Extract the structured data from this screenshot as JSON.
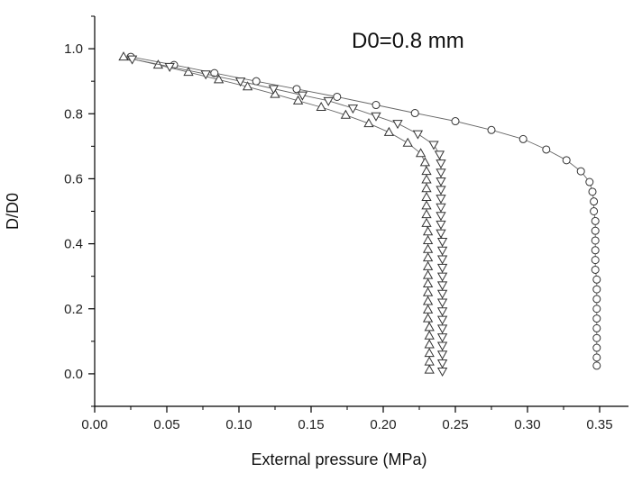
{
  "chart_data": {
    "type": "scatter",
    "title": "",
    "xlabel": "External pressure (MPa)",
    "ylabel": "D/D0",
    "annotation": "D0=0.8 mm",
    "xlim": [
      0.0,
      0.37
    ],
    "ylim": [
      -0.1,
      1.1
    ],
    "x_ticks": [
      "0.00",
      "0.05",
      "0.10",
      "0.15",
      "0.20",
      "0.25",
      "0.30",
      "0.35"
    ],
    "y_ticks": [
      "0.0",
      "0.2",
      "0.4",
      "0.6",
      "0.8",
      "1.0"
    ],
    "grid": false,
    "legend": "none",
    "series": [
      {
        "marker": "circle",
        "points": [
          [
            0.025,
            0.975
          ],
          [
            0.055,
            0.95
          ],
          [
            0.083,
            0.925
          ],
          [
            0.112,
            0.9
          ],
          [
            0.14,
            0.876
          ],
          [
            0.168,
            0.852
          ],
          [
            0.195,
            0.827
          ],
          [
            0.222,
            0.802
          ],
          [
            0.25,
            0.777
          ],
          [
            0.275,
            0.75
          ],
          [
            0.297,
            0.722
          ],
          [
            0.313,
            0.69
          ],
          [
            0.327,
            0.657
          ],
          [
            0.337,
            0.623
          ],
          [
            0.343,
            0.59
          ],
          [
            0.345,
            0.56
          ],
          [
            0.346,
            0.53
          ],
          [
            0.346,
            0.5
          ],
          [
            0.347,
            0.47
          ],
          [
            0.347,
            0.44
          ],
          [
            0.347,
            0.41
          ],
          [
            0.347,
            0.38
          ],
          [
            0.347,
            0.35
          ],
          [
            0.347,
            0.32
          ],
          [
            0.348,
            0.29
          ],
          [
            0.348,
            0.26
          ],
          [
            0.348,
            0.23
          ],
          [
            0.348,
            0.2
          ],
          [
            0.348,
            0.17
          ],
          [
            0.348,
            0.14
          ],
          [
            0.348,
            0.11
          ],
          [
            0.348,
            0.08
          ],
          [
            0.348,
            0.05
          ],
          [
            0.348,
            0.025
          ]
        ]
      },
      {
        "marker": "triangle-up",
        "points": [
          [
            0.02,
            0.975
          ],
          [
            0.044,
            0.95
          ],
          [
            0.065,
            0.928
          ],
          [
            0.086,
            0.905
          ],
          [
            0.106,
            0.883
          ],
          [
            0.125,
            0.86
          ],
          [
            0.141,
            0.84
          ],
          [
            0.157,
            0.82
          ],
          [
            0.174,
            0.796
          ],
          [
            0.19,
            0.77
          ],
          [
            0.204,
            0.743
          ],
          [
            0.217,
            0.71
          ],
          [
            0.226,
            0.678
          ],
          [
            0.229,
            0.65
          ],
          [
            0.23,
            0.623
          ],
          [
            0.23,
            0.597
          ],
          [
            0.23,
            0.57
          ],
          [
            0.23,
            0.543
          ],
          [
            0.23,
            0.517
          ],
          [
            0.23,
            0.49
          ],
          [
            0.23,
            0.463
          ],
          [
            0.231,
            0.437
          ],
          [
            0.231,
            0.41
          ],
          [
            0.231,
            0.383
          ],
          [
            0.231,
            0.357
          ],
          [
            0.231,
            0.33
          ],
          [
            0.231,
            0.303
          ],
          [
            0.231,
            0.277
          ],
          [
            0.231,
            0.25
          ],
          [
            0.231,
            0.223
          ],
          [
            0.231,
            0.197
          ],
          [
            0.231,
            0.17
          ],
          [
            0.232,
            0.143
          ],
          [
            0.232,
            0.117
          ],
          [
            0.232,
            0.09
          ],
          [
            0.232,
            0.063
          ],
          [
            0.232,
            0.037
          ],
          [
            0.232,
            0.012
          ]
        ]
      },
      {
        "marker": "triangle-down",
        "points": [
          [
            0.026,
            0.968
          ],
          [
            0.052,
            0.945
          ],
          [
            0.077,
            0.922
          ],
          [
            0.101,
            0.9
          ],
          [
            0.124,
            0.877
          ],
          [
            0.144,
            0.857
          ],
          [
            0.162,
            0.84
          ],
          [
            0.179,
            0.817
          ],
          [
            0.195,
            0.793
          ],
          [
            0.21,
            0.77
          ],
          [
            0.224,
            0.738
          ],
          [
            0.235,
            0.705
          ],
          [
            0.239,
            0.675
          ],
          [
            0.24,
            0.648
          ],
          [
            0.24,
            0.62
          ],
          [
            0.24,
            0.593
          ],
          [
            0.24,
            0.567
          ],
          [
            0.24,
            0.54
          ],
          [
            0.24,
            0.513
          ],
          [
            0.24,
            0.487
          ],
          [
            0.24,
            0.46
          ],
          [
            0.24,
            0.433
          ],
          [
            0.241,
            0.407
          ],
          [
            0.241,
            0.38
          ],
          [
            0.241,
            0.353
          ],
          [
            0.241,
            0.327
          ],
          [
            0.241,
            0.3
          ],
          [
            0.241,
            0.273
          ],
          [
            0.241,
            0.247
          ],
          [
            0.241,
            0.22
          ],
          [
            0.241,
            0.193
          ],
          [
            0.241,
            0.167
          ],
          [
            0.241,
            0.14
          ],
          [
            0.241,
            0.113
          ],
          [
            0.241,
            0.087
          ],
          [
            0.241,
            0.06
          ],
          [
            0.241,
            0.033
          ],
          [
            0.241,
            0.008
          ]
        ]
      }
    ]
  }
}
